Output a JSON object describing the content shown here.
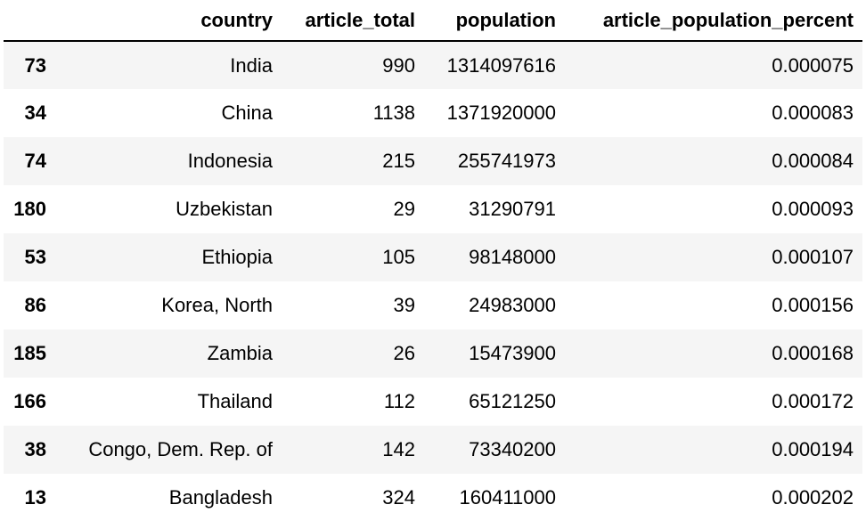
{
  "table": {
    "columns": [
      "",
      "country",
      "article_total",
      "population",
      "article_population_percent"
    ],
    "rows": [
      {
        "index": "73",
        "country": "India",
        "article_total": "990",
        "population": "1314097616",
        "article_population_percent": "0.000075"
      },
      {
        "index": "34",
        "country": "China",
        "article_total": "1138",
        "population": "1371920000",
        "article_population_percent": "0.000083"
      },
      {
        "index": "74",
        "country": "Indonesia",
        "article_total": "215",
        "population": "255741973",
        "article_population_percent": "0.000084"
      },
      {
        "index": "180",
        "country": "Uzbekistan",
        "article_total": "29",
        "population": "31290791",
        "article_population_percent": "0.000093"
      },
      {
        "index": "53",
        "country": "Ethiopia",
        "article_total": "105",
        "population": "98148000",
        "article_population_percent": "0.000107"
      },
      {
        "index": "86",
        "country": "Korea, North",
        "article_total": "39",
        "population": "24983000",
        "article_population_percent": "0.000156"
      },
      {
        "index": "185",
        "country": "Zambia",
        "article_total": "26",
        "population": "15473900",
        "article_population_percent": "0.000168"
      },
      {
        "index": "166",
        "country": "Thailand",
        "article_total": "112",
        "population": "65121250",
        "article_population_percent": "0.000172"
      },
      {
        "index": "38",
        "country": "Congo, Dem. Rep. of",
        "article_total": "142",
        "population": "73340200",
        "article_population_percent": "0.000194"
      },
      {
        "index": "13",
        "country": "Bangladesh",
        "article_total": "324",
        "population": "160411000",
        "article_population_percent": "0.000202"
      }
    ]
  }
}
